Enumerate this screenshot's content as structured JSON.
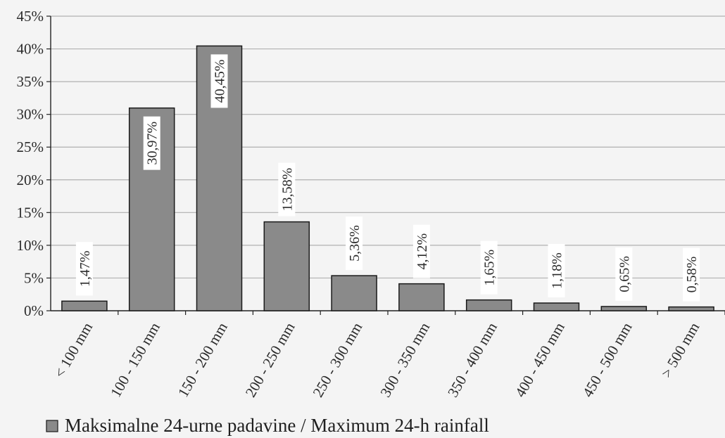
{
  "chart_data": {
    "type": "bar",
    "categories": [
      "< 100 mm",
      "100 - 150 mm",
      "150 - 200 mm",
      "200 - 250 mm",
      "250 - 300 mm",
      "300 - 350 mm",
      "350 - 400 mm",
      "400 - 450 mm",
      "450 - 500 mm",
      "> 500 mm"
    ],
    "series": [
      {
        "name": "Maksimalne 24-urne padavine / Maximum 24-h rainfall",
        "values": [
          1.47,
          30.97,
          40.45,
          13.58,
          5.36,
          4.12,
          1.65,
          1.18,
          0.65,
          0.58
        ],
        "labels": [
          "1,47%",
          "30,97%",
          "40,45%",
          "13,58%",
          "5,36%",
          "4,12%",
          "1,65%",
          "1,18%",
          "0,65%",
          "0,58%"
        ]
      }
    ],
    "y_ticks": [
      "0%",
      "5%",
      "10%",
      "15%",
      "20%",
      "25%",
      "30%",
      "35%",
      "40%",
      "45%"
    ],
    "ylim": [
      0,
      45
    ],
    "grid": true,
    "legend": "bottom",
    "colors": {
      "bar_fill": "#8a8a8a",
      "bar_stroke": "#1a1a1a",
      "grid": "#b0b0b0",
      "background": "#f4f4f4"
    }
  }
}
